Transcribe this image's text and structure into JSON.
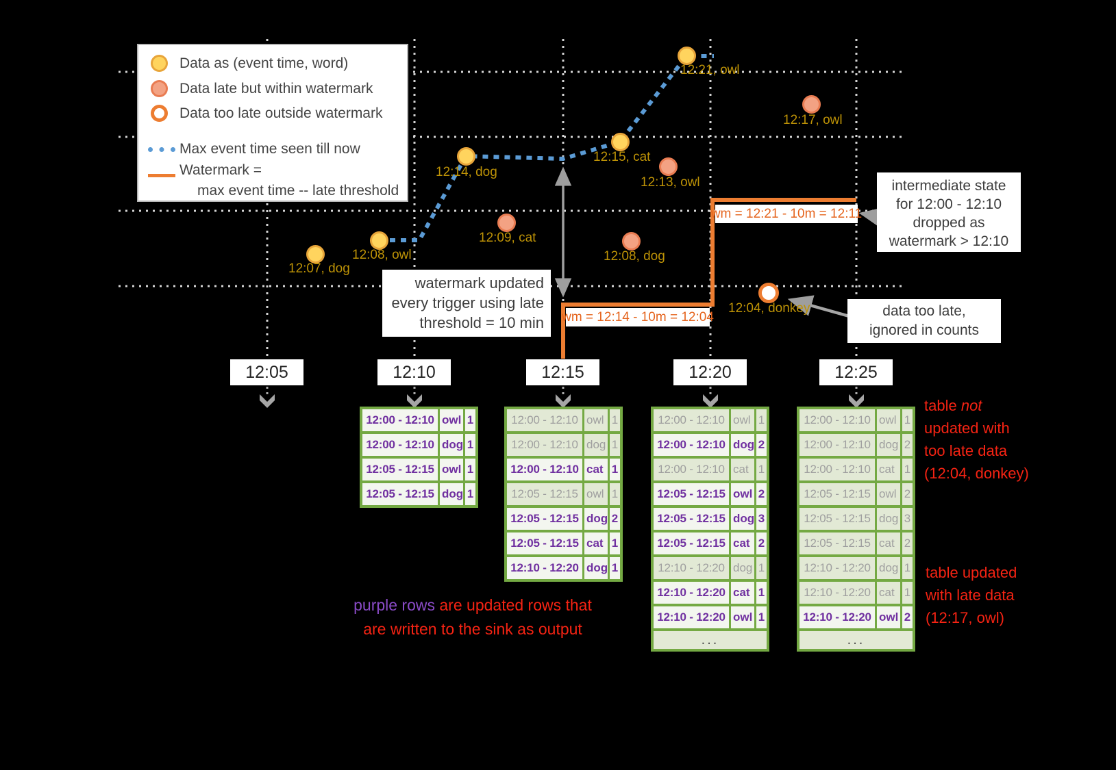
{
  "legend": {
    "items": [
      {
        "swatch": "on-time-dot",
        "label": "Data as (event time, word)"
      },
      {
        "swatch": "late-dot",
        "label": "Data late but within watermark"
      },
      {
        "swatch": "too-late-dot",
        "label": "Data too late outside watermark"
      },
      {
        "swatch": "max-event-line",
        "label": "Max event time seen till now"
      },
      {
        "swatch": "watermark-line",
        "label": "Watermark =",
        "label2": "max event time -- late threshold"
      }
    ]
  },
  "points": [
    {
      "label": "12:07, dog",
      "status": "on-time"
    },
    {
      "label": "12:08, owl",
      "status": "on-time"
    },
    {
      "label": "12:14, dog",
      "status": "on-time"
    },
    {
      "label": "12:15, cat",
      "status": "on-time"
    },
    {
      "label": "12:21, owl",
      "status": "on-time"
    },
    {
      "label": "12:09, cat",
      "status": "late"
    },
    {
      "label": "12:13, owl",
      "status": "late"
    },
    {
      "label": "12:08, dog",
      "status": "late"
    },
    {
      "label": "12:17, owl",
      "status": "late"
    },
    {
      "label": "12:04, donkey",
      "status": "too-late"
    }
  ],
  "watermark": {
    "label1": "wm = 12:14 - 10m = 12:04",
    "label2": "wm = 12:21 - 10m = 12:11"
  },
  "callouts": {
    "watermark_updated": {
      "lines": [
        "watermark updated",
        "every trigger using late",
        "threshold = 10 min"
      ]
    },
    "intermediate_state": {
      "lines": [
        "intermediate state",
        "for 12:00 - 12:10",
        "dropped as",
        "watermark > 12:10"
      ]
    },
    "too_late": {
      "lines": [
        "data too late,",
        "ignored in counts"
      ]
    }
  },
  "triggers": [
    {
      "label": "12:05"
    },
    {
      "label": "12:10"
    },
    {
      "label": "12:15"
    },
    {
      "label": "12:20"
    },
    {
      "label": "12:25"
    }
  ],
  "tables": {
    "t1210": {
      "rows": [
        {
          "window": "12:00 - 12:10",
          "word": "owl",
          "count": "1",
          "updated": true
        },
        {
          "window": "12:00 - 12:10",
          "word": "dog",
          "count": "1",
          "updated": true
        },
        {
          "window": "12:05 - 12:15",
          "word": "owl",
          "count": "1",
          "updated": true
        },
        {
          "window": "12:05 - 12:15",
          "word": "dog",
          "count": "1",
          "updated": true
        }
      ]
    },
    "t1215": {
      "rows": [
        {
          "window": "12:00 - 12:10",
          "word": "owl",
          "count": "1",
          "updated": false
        },
        {
          "window": "12:00 - 12:10",
          "word": "dog",
          "count": "1",
          "updated": false
        },
        {
          "window": "12:00 - 12:10",
          "word": "cat",
          "count": "1",
          "updated": true
        },
        {
          "window": "12:05 - 12:15",
          "word": "owl",
          "count": "1",
          "updated": false
        },
        {
          "window": "12:05 - 12:15",
          "word": "dog",
          "count": "2",
          "updated": true
        },
        {
          "window": "12:05 - 12:15",
          "word": "cat",
          "count": "1",
          "updated": true
        },
        {
          "window": "12:10 - 12:20",
          "word": "dog",
          "count": "1",
          "updated": true
        }
      ]
    },
    "t1220": {
      "ellipsis": "...",
      "rows": [
        {
          "window": "12:00 - 12:10",
          "word": "owl",
          "count": "1",
          "updated": false
        },
        {
          "window": "12:00 - 12:10",
          "word": "dog",
          "count": "2",
          "updated": true
        },
        {
          "window": "12:00 - 12:10",
          "word": "cat",
          "count": "1",
          "updated": false
        },
        {
          "window": "12:05 - 12:15",
          "word": "owl",
          "count": "2",
          "updated": true
        },
        {
          "window": "12:05 - 12:15",
          "word": "dog",
          "count": "3",
          "updated": true
        },
        {
          "window": "12:05 - 12:15",
          "word": "cat",
          "count": "2",
          "updated": true
        },
        {
          "window": "12:10 - 12:20",
          "word": "dog",
          "count": "1",
          "updated": false
        },
        {
          "window": "12:10 - 12:20",
          "word": "cat",
          "count": "1",
          "updated": true
        },
        {
          "window": "12:10 - 12:20",
          "word": "owl",
          "count": "1",
          "updated": true
        }
      ]
    },
    "t1225": {
      "ellipsis": "...",
      "rows": [
        {
          "window": "12:00 - 12:10",
          "word": "owl",
          "count": "1",
          "updated": false
        },
        {
          "window": "12:00 - 12:10",
          "word": "dog",
          "count": "2",
          "updated": false
        },
        {
          "window": "12:00 - 12:10",
          "word": "cat",
          "count": "1",
          "updated": false
        },
        {
          "window": "12:05 - 12:15",
          "word": "owl",
          "count": "2",
          "updated": false
        },
        {
          "window": "12:05 - 12:15",
          "word": "dog",
          "count": "3",
          "updated": false
        },
        {
          "window": "12:05 - 12:15",
          "word": "cat",
          "count": "2",
          "updated": false
        },
        {
          "window": "12:10 - 12:20",
          "word": "dog",
          "count": "1",
          "updated": false
        },
        {
          "window": "12:10 - 12:20",
          "word": "cat",
          "count": "1",
          "updated": false
        },
        {
          "window": "12:10 - 12:20",
          "word": "owl",
          "count": "2",
          "updated": true
        }
      ]
    }
  },
  "annotations": {
    "not_updated": {
      "pre": "table ",
      "italic": "not",
      "lines": [
        "updated with",
        "too late data",
        "(12:04, donkey)"
      ]
    },
    "updated_late": {
      "lines": [
        "table updated",
        "with late data",
        "(12:17, owl)"
      ]
    },
    "purple_note": {
      "highlight": "purple rows",
      "rest": " are updated rows that",
      "line2": "are written to the sink as output"
    }
  },
  "colors": {
    "background": "#000000",
    "on_time_fill": "#ffd45e",
    "late_fill": "#f3a283",
    "too_late_ring": "#ed7d31",
    "max_event_line": "#5b9bd5",
    "watermark_line": "#ed7d31",
    "point_label": "#bd9206",
    "table_green": "#74a943",
    "updated_purple": "#7030a0",
    "stale_gray": "#9f9f9f",
    "note_red": "#f52313",
    "gridline": "#d4d4d4"
  }
}
